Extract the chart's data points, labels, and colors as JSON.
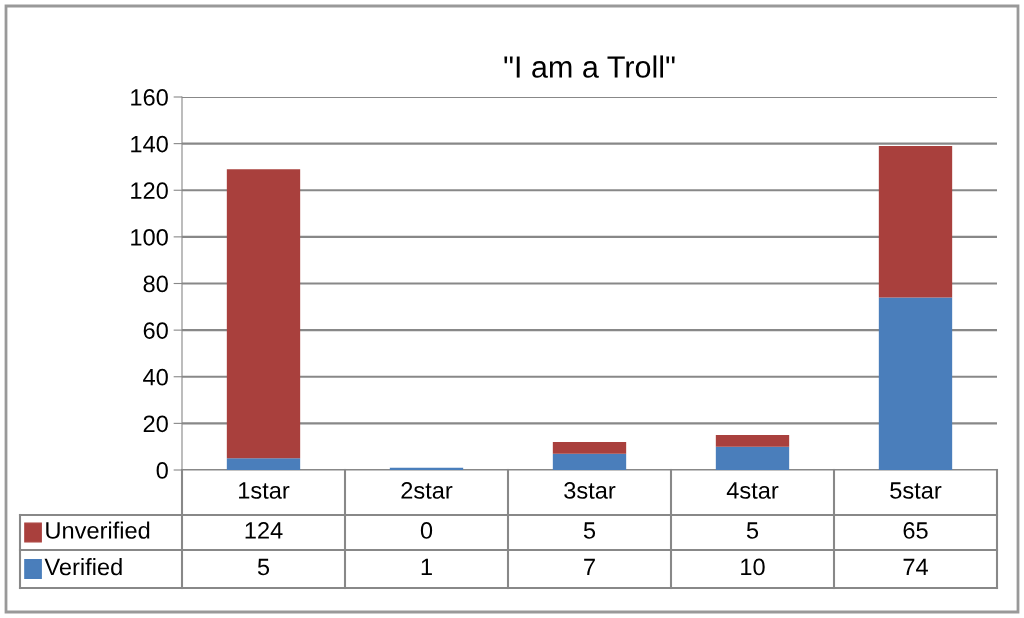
{
  "chart_data": {
    "type": "bar",
    "title": "\"I am a Troll\"",
    "categories": [
      "1star",
      "2star",
      "3star",
      "4star",
      "5star"
    ],
    "series": [
      {
        "name": "Verified",
        "color": "#4a7ebb",
        "values": [
          5,
          1,
          7,
          10,
          74
        ]
      },
      {
        "name": "Unverified",
        "color": "#a9403d",
        "values": [
          124,
          0,
          5,
          5,
          65
        ]
      }
    ],
    "stacked": true,
    "ylim": [
      0,
      160
    ],
    "yticks": [
      0,
      20,
      40,
      60,
      80,
      100,
      120,
      140,
      160
    ],
    "grid": "y",
    "data_labels": true,
    "legend": "bottom left"
  }
}
